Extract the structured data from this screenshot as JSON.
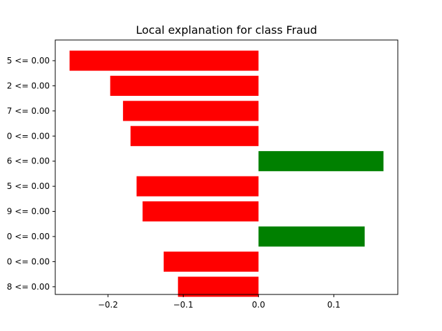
{
  "chart_data": {
    "type": "bar",
    "orientation": "horizontal",
    "title": "Local explanation for class Fraud",
    "xlabel": "",
    "ylabel": "",
    "xlim": [
      -0.27,
      0.185
    ],
    "xticks": [
      -0.2,
      -0.1,
      0.0,
      0.1
    ],
    "xtick_labels": [
      "−0.2",
      "−0.1",
      "0.0",
      "0.1"
    ],
    "categories": [
      "5 <= 0.00",
      "2 <= 0.00",
      "7 <= 0.00",
      "0 <= 0.00",
      "6 <= 0.00",
      "5 <= 0.00",
      "9 <= 0.00",
      "0 <= 0.00",
      "0 <= 0.00",
      "8 <= 0.00"
    ],
    "values": [
      -0.251,
      -0.197,
      -0.18,
      -0.17,
      0.166,
      -0.162,
      -0.154,
      0.141,
      -0.126,
      -0.107
    ],
    "colors": {
      "negative": "#ff0000",
      "positive": "#008000"
    },
    "grid": false,
    "legend": "none"
  }
}
